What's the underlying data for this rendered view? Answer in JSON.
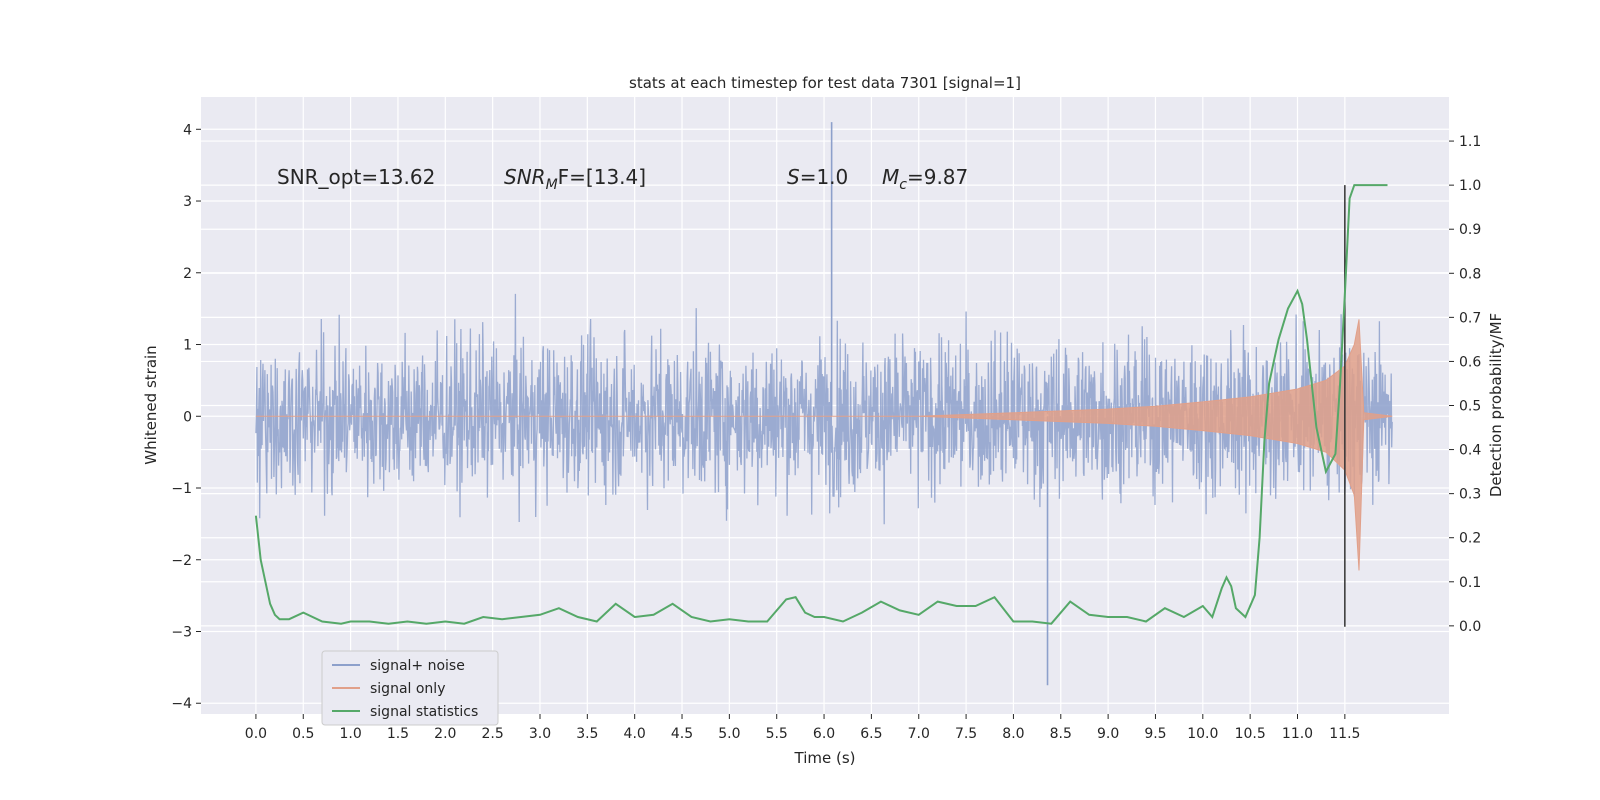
{
  "chart_data": {
    "type": "line",
    "title": "stats at each timestep for test data 7301 [signal=1]",
    "xlabel": "Time (s)",
    "ylabel": "Whitened strain",
    "ylabel_right": "Detection probability/MF",
    "xlim": [
      -0.58,
      12.6
    ],
    "ylim": [
      -4.15,
      4.45
    ],
    "ylim_right": [
      -0.2,
      1.2
    ],
    "x_ticks": [
      0.0,
      0.5,
      1.0,
      1.5,
      2.0,
      2.5,
      3.0,
      3.5,
      4.0,
      4.5,
      5.0,
      5.5,
      6.0,
      6.5,
      7.0,
      7.5,
      8.0,
      8.5,
      9.0,
      9.5,
      10.0,
      10.5,
      11.0,
      11.5
    ],
    "x_tick_labels": [
      "0.0",
      "0.5",
      "1.0",
      "1.5",
      "2.0",
      "2.5",
      "3.0",
      "3.5",
      "4.0",
      "4.5",
      "5.0",
      "5.5",
      "6.0",
      "6.5",
      "7.0",
      "7.5",
      "8.0",
      "8.5",
      "9.0",
      "9.5",
      "10.0",
      "10.5",
      "11.0",
      "11.5"
    ],
    "y_ticks": [
      -4,
      -3,
      -2,
      -1,
      0,
      1,
      2,
      3,
      4
    ],
    "y_tick_labels": [
      "−4",
      "−3",
      "−2",
      "−1",
      "0",
      "1",
      "2",
      "3",
      "4"
    ],
    "y_ticks_right": [
      0.0,
      0.1,
      0.2,
      0.3,
      0.4,
      0.5,
      0.6,
      0.7,
      0.8,
      0.9,
      1.0,
      1.1
    ],
    "y_tick_labels_right": [
      "0.0",
      "0.1",
      "0.2",
      "0.3",
      "0.4",
      "0.5",
      "0.6",
      "0.7",
      "0.8",
      "0.9",
      "1.0",
      "1.1"
    ],
    "grid": true,
    "legend_position": "lower-left",
    "series": [
      {
        "name": "signal+ noise",
        "color": "#8da0cb",
        "axis": "left",
        "kind": "noise-trace",
        "x_range": [
          0.0,
          12.0
        ],
        "amplitude_envelope": {
          "typical_max": 1.9,
          "typical_min": -1.9,
          "peak": 4.1,
          "trough": -3.75
        }
      },
      {
        "name": "signal only",
        "color": "#e1a08a",
        "axis": "left",
        "kind": "chirp-envelope",
        "x": [
          0.0,
          7.0,
          8.0,
          9.0,
          9.5,
          10.0,
          10.5,
          11.0,
          11.3,
          11.5,
          11.6,
          11.65,
          11.7,
          12.0
        ],
        "upper": [
          0.0,
          0.0,
          0.05,
          0.1,
          0.14,
          0.2,
          0.27,
          0.38,
          0.5,
          0.7,
          1.0,
          1.35,
          0.05,
          0.0
        ],
        "lower": [
          0.0,
          0.0,
          -0.05,
          -0.1,
          -0.14,
          -0.2,
          -0.27,
          -0.38,
          -0.5,
          -0.75,
          -1.1,
          -2.15,
          -0.05,
          0.0
        ]
      },
      {
        "name": "signal statistics",
        "color": "#55a868",
        "axis": "right",
        "x": [
          0.0,
          0.05,
          0.1,
          0.15,
          0.2,
          0.25,
          0.35,
          0.5,
          0.7,
          0.9,
          1.0,
          1.2,
          1.4,
          1.6,
          1.8,
          2.0,
          2.2,
          2.4,
          2.6,
          2.8,
          3.0,
          3.2,
          3.4,
          3.6,
          3.8,
          4.0,
          4.2,
          4.4,
          4.6,
          4.8,
          5.0,
          5.2,
          5.4,
          5.6,
          5.7,
          5.8,
          5.9,
          6.0,
          6.2,
          6.4,
          6.6,
          6.8,
          7.0,
          7.2,
          7.4,
          7.6,
          7.8,
          8.0,
          8.2,
          8.4,
          8.6,
          8.8,
          9.0,
          9.2,
          9.4,
          9.6,
          9.8,
          10.0,
          10.1,
          10.2,
          10.25,
          10.3,
          10.35,
          10.45,
          10.55,
          10.6,
          10.65,
          10.7,
          10.75,
          10.8,
          10.9,
          11.0,
          11.05,
          11.1,
          11.2,
          11.3,
          11.4,
          11.45,
          11.5,
          11.55,
          11.6,
          11.7,
          11.8,
          11.9,
          11.95
        ],
        "y": [
          0.25,
          0.15,
          0.1,
          0.05,
          0.025,
          0.015,
          0.015,
          0.03,
          0.01,
          0.005,
          0.01,
          0.01,
          0.005,
          0.01,
          0.005,
          0.01,
          0.005,
          0.02,
          0.015,
          0.02,
          0.025,
          0.04,
          0.02,
          0.01,
          0.05,
          0.02,
          0.025,
          0.05,
          0.02,
          0.01,
          0.015,
          0.01,
          0.01,
          0.06,
          0.065,
          0.03,
          0.02,
          0.02,
          0.01,
          0.03,
          0.055,
          0.035,
          0.025,
          0.055,
          0.045,
          0.045,
          0.065,
          0.01,
          0.01,
          0.005,
          0.055,
          0.025,
          0.02,
          0.02,
          0.01,
          0.04,
          0.02,
          0.045,
          0.02,
          0.085,
          0.11,
          0.09,
          0.04,
          0.02,
          0.07,
          0.2,
          0.42,
          0.55,
          0.6,
          0.65,
          0.72,
          0.76,
          0.73,
          0.65,
          0.45,
          0.35,
          0.39,
          0.55,
          0.75,
          0.97,
          1.0,
          1.0,
          1.0,
          1.0,
          1.0
        ]
      }
    ],
    "vertical_line": {
      "x": 11.5,
      "color": "#333333"
    },
    "annotations": [
      {
        "text": "SNR_opt=13.62",
        "x": 0.2,
        "y": 3.3
      },
      {
        "text": "SNR",
        "sub": "M",
        "rest": "F=[13.4]",
        "x": 2.6,
        "y": 3.3
      },
      {
        "text": "S",
        "rest": "=1.0",
        "x": 5.6,
        "y": 3.3
      },
      {
        "text": "M",
        "sub": "c",
        "rest": "=9.87",
        "x": 6.6,
        "y": 3.3
      }
    ]
  }
}
